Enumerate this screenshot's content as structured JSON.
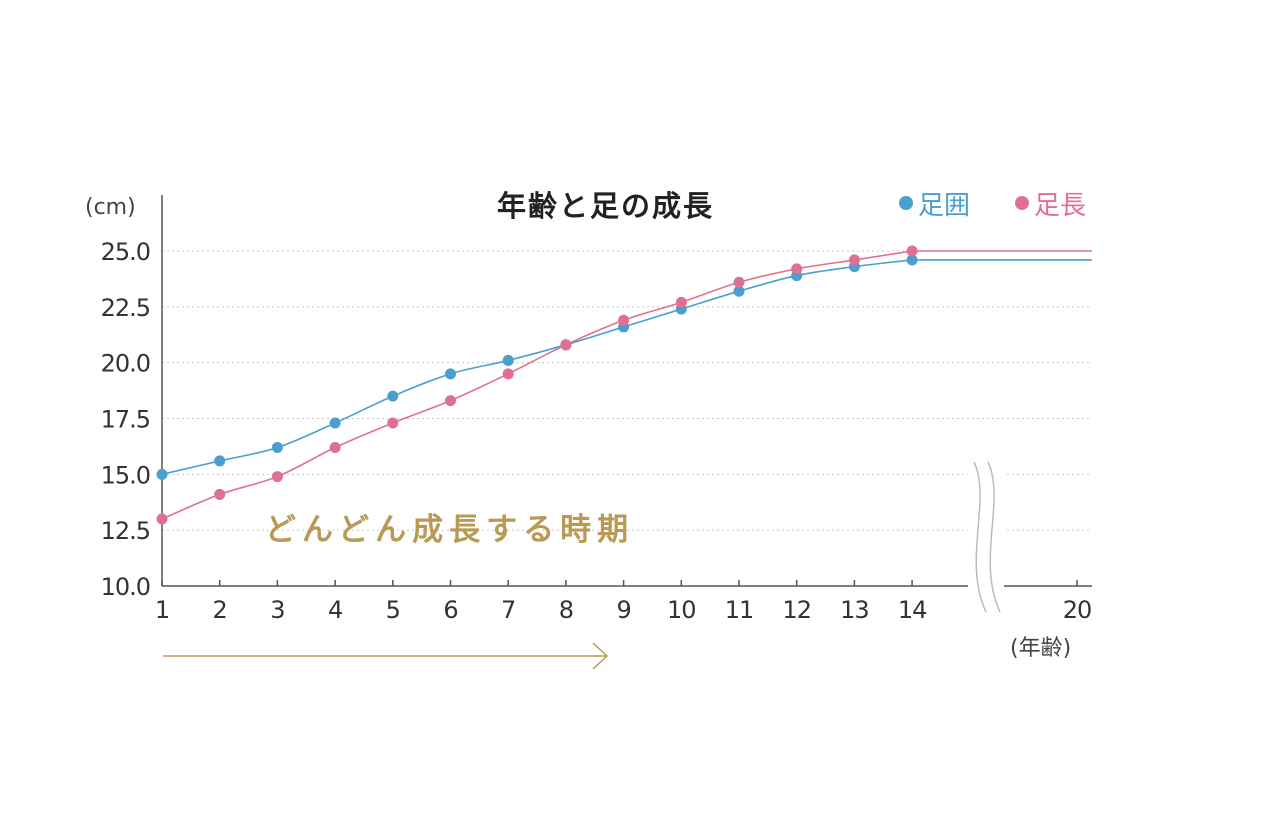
{
  "chart_data": {
    "type": "line",
    "title": "年齢と足の成長",
    "ylabel": "(cm)",
    "xlabel": "(年齢)",
    "ylim": [
      10.0,
      25.0
    ],
    "yticks": [
      "10.0",
      "12.5",
      "15.0",
      "17.5",
      "20.0",
      "22.5",
      "25.0"
    ],
    "xticks": [
      "1",
      "2",
      "3",
      "4",
      "5",
      "6",
      "7",
      "8",
      "9",
      "10",
      "11",
      "12",
      "13",
      "14",
      "20"
    ],
    "grid": true,
    "legend_position": "top-right",
    "axis_break": "between 14 and 20",
    "series": [
      {
        "name": "足囲",
        "color": "#4a9fd0",
        "x": [
          1,
          2,
          3,
          4,
          5,
          6,
          7,
          8,
          9,
          10,
          11,
          12,
          13,
          14
        ],
        "values": [
          15.0,
          15.6,
          16.2,
          17.3,
          18.5,
          19.5,
          20.1,
          20.8,
          21.6,
          22.4,
          23.2,
          23.9,
          24.3,
          24.6
        ],
        "plateau": 24.6
      },
      {
        "name": "足長",
        "color": "#e07090",
        "x": [
          1,
          2,
          3,
          4,
          5,
          6,
          7,
          8,
          9,
          10,
          11,
          12,
          13,
          14
        ],
        "values": [
          13.0,
          14.1,
          14.9,
          16.2,
          17.3,
          18.3,
          19.5,
          20.8,
          21.9,
          22.7,
          23.6,
          24.2,
          24.6,
          25.0
        ],
        "plateau": 25.0
      }
    ],
    "annotation": {
      "text": "どんどん成長する時期",
      "color": "#b89a55"
    }
  }
}
